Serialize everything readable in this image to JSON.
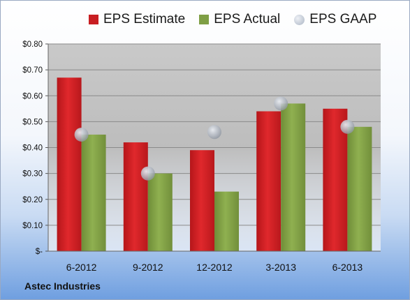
{
  "chart_data": {
    "type": "bar",
    "categories": [
      "6-2012",
      "9-2012",
      "12-2012",
      "3-2013",
      "6-2013"
    ],
    "series": [
      {
        "name": "EPS Estimate",
        "type": "bar",
        "color": "#c81e22",
        "values": [
          0.67,
          0.42,
          0.39,
          0.54,
          0.55
        ]
      },
      {
        "name": "EPS Actual",
        "type": "bar",
        "color": "#7f9f45",
        "values": [
          0.45,
          0.3,
          0.23,
          0.57,
          0.48
        ]
      },
      {
        "name": "EPS GAAP",
        "type": "scatter",
        "color": "#b8c2d0",
        "values": [
          0.45,
          0.3,
          0.46,
          0.57,
          0.48
        ]
      }
    ],
    "yticks": [
      {
        "value": 0,
        "label": "$-"
      },
      {
        "value": 0.1,
        "label": "$0.10"
      },
      {
        "value": 0.2,
        "label": "$0.20"
      },
      {
        "value": 0.3,
        "label": "$0.30"
      },
      {
        "value": 0.4,
        "label": "$0.40"
      },
      {
        "value": 0.5,
        "label": "$0.50"
      },
      {
        "value": 0.6,
        "label": "$0.60"
      },
      {
        "value": 0.7,
        "label": "$0.70"
      },
      {
        "value": 0.8,
        "label": "$0.80"
      }
    ],
    "ylim": [
      0,
      0.8
    ],
    "grid": true,
    "legend": "top"
  },
  "footer": {
    "company": "Astec Industries"
  }
}
